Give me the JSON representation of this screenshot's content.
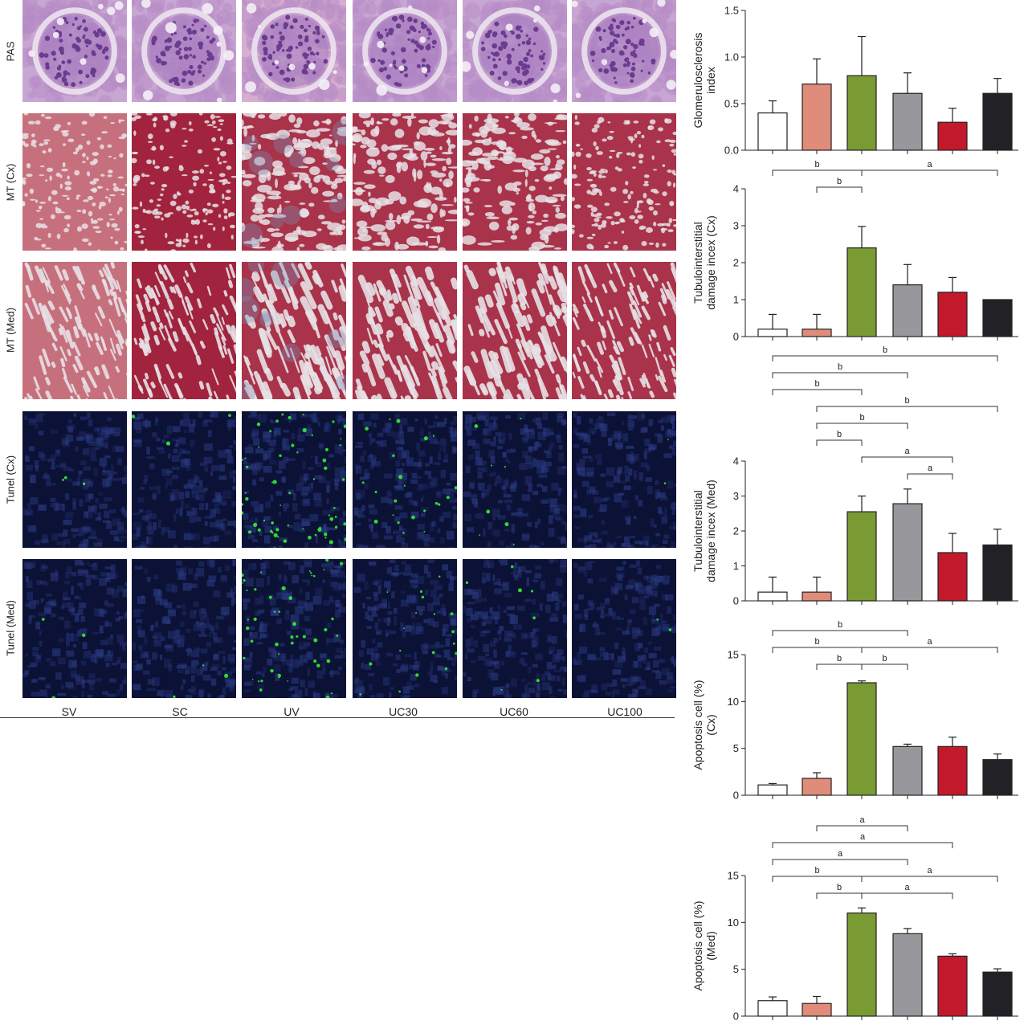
{
  "groups": [
    "SV",
    "SC",
    "UV",
    "UC30",
    "UC60",
    "UC100"
  ],
  "rows": [
    {
      "label": "PAS",
      "kind": "pas"
    },
    {
      "label": "MT (Cx)",
      "kind": "mtcx"
    },
    {
      "label": "MT (Med)",
      "kind": "mtmed"
    },
    {
      "label": "Tunel (Cx)",
      "kind": "tunel"
    },
    {
      "label": "Tunel (Med)",
      "kind": "tunel"
    }
  ],
  "colors": {
    "bars": [
      "#ffffff",
      "#e08c7a",
      "#7a9a34",
      "#97979c",
      "#c21a2c",
      "#222226"
    ],
    "bar_edge": "#222222",
    "pas_bg": "#c8a6d3",
    "pas_nuclei": "#6a3b8e",
    "mt_red": "#a8334a",
    "mt_lumen": "#e6e0e4",
    "tunel_bg": "#0c1236",
    "tunel_green": "#33ee33"
  },
  "chart_data": [
    {
      "type": "bar",
      "categories": [
        "SV",
        "SC",
        "UV",
        "UC30",
        "UC60",
        "UC100"
      ],
      "values": [
        0.4,
        0.71,
        0.8,
        0.61,
        0.3,
        0.61
      ],
      "errors": [
        0.13,
        0.27,
        0.42,
        0.22,
        0.15,
        0.16
      ],
      "ylabel": [
        "Glomerulosclerosis",
        "index"
      ],
      "ylim": [
        0,
        1.5
      ],
      "yticks": [
        0.0,
        0.5,
        1.0,
        1.5
      ],
      "ytick_labels": [
        "0.0",
        "0.5",
        "1.0",
        "1.5"
      ],
      "brackets": []
    },
    {
      "type": "bar",
      "categories": [
        "SV",
        "SC",
        "UV",
        "UC30",
        "UC60",
        "UC100"
      ],
      "values": [
        0.2,
        0.2,
        2.4,
        1.4,
        1.2,
        1.0
      ],
      "errors": [
        0.4,
        0.4,
        0.58,
        0.55,
        0.4,
        0
      ],
      "ylabel": [
        "Tubulointerstitial",
        "damage incex (Cx)"
      ],
      "ylim": [
        0,
        4
      ],
      "yticks": [
        0,
        1,
        2,
        3,
        4
      ],
      "ytick_labels": [
        "0",
        "1",
        "2",
        "3",
        "4"
      ],
      "brackets": [
        {
          "from": 1,
          "to": 2,
          "label": "b",
          "level": 0
        },
        {
          "from": 0,
          "to": 2,
          "label": "b",
          "level": 1
        },
        {
          "from": 2,
          "to": 5,
          "label": "a",
          "level": 1
        }
      ]
    },
    {
      "type": "bar",
      "categories": [
        "SV",
        "SC",
        "UV",
        "UC30",
        "UC60",
        "UC100"
      ],
      "values": [
        0.25,
        0.25,
        2.55,
        2.78,
        1.38,
        1.6
      ],
      "errors": [
        0.43,
        0.43,
        0.45,
        0.42,
        0.55,
        0.45
      ],
      "ylabel": [
        "Tubulointerstitial",
        "damage incex (Med)"
      ],
      "ylim": [
        0,
        4
      ],
      "yticks": [
        0,
        1,
        2,
        3,
        4
      ],
      "ytick_labels": [
        "0",
        "1",
        "2",
        "3",
        "4"
      ],
      "brackets": [
        {
          "from": 3,
          "to": 4,
          "label": "a",
          "level": 0
        },
        {
          "from": 2,
          "to": 4,
          "label": "a",
          "level": 1
        },
        {
          "from": 1,
          "to": 2,
          "label": "b",
          "level": 2
        },
        {
          "from": 1,
          "to": 3,
          "label": "b",
          "level": 3
        },
        {
          "from": 1,
          "to": 5,
          "label": "b",
          "level": 4
        },
        {
          "from": 0,
          "to": 2,
          "label": "b",
          "level": 5
        },
        {
          "from": 0,
          "to": 3,
          "label": "b",
          "level": 6
        },
        {
          "from": 0,
          "to": 5,
          "label": "b",
          "level": 7
        }
      ]
    },
    {
      "type": "bar",
      "categories": [
        "SV",
        "SC",
        "UV",
        "UC30",
        "UC60",
        "UC100"
      ],
      "values": [
        1.1,
        1.8,
        12.0,
        5.2,
        5.2,
        3.8
      ],
      "errors": [
        0.15,
        0.6,
        0.2,
        0.25,
        1.0,
        0.6
      ],
      "ylabel": [
        "Apoptosis cell (%)",
        "(Cx)"
      ],
      "ylim": [
        0,
        15
      ],
      "yticks": [
        0,
        5,
        10,
        15
      ],
      "ytick_labels": [
        "0",
        "5",
        "10",
        "15"
      ],
      "brackets": [
        {
          "from": 1,
          "to": 2,
          "label": "b",
          "level": 0
        },
        {
          "from": 2,
          "to": 3,
          "label": "b",
          "level": 0
        },
        {
          "from": 0,
          "to": 2,
          "label": "b",
          "level": 1
        },
        {
          "from": 2,
          "to": 5,
          "label": "a",
          "level": 1
        },
        {
          "from": 0,
          "to": 3,
          "label": "b",
          "level": 2
        }
      ]
    },
    {
      "type": "bar",
      "categories": [
        "SV",
        "SC",
        "UV",
        "UC30",
        "UC60",
        "UC100"
      ],
      "values": [
        1.65,
        1.35,
        11.0,
        8.8,
        6.4,
        4.7
      ],
      "errors": [
        0.4,
        0.75,
        0.55,
        0.55,
        0.25,
        0.35
      ],
      "ylabel": [
        "Apoptosis cell (%)",
        "(Med)"
      ],
      "ylim": [
        0,
        15
      ],
      "yticks": [
        0,
        5,
        10,
        15
      ],
      "ytick_labels": [
        "0",
        "5",
        "10",
        "15"
      ],
      "brackets": [
        {
          "from": 1,
          "to": 2,
          "label": "b",
          "level": 0
        },
        {
          "from": 2,
          "to": 4,
          "label": "a",
          "level": 0
        },
        {
          "from": 0,
          "to": 2,
          "label": "b",
          "level": 1
        },
        {
          "from": 2,
          "to": 5,
          "label": "a",
          "level": 1
        },
        {
          "from": 0,
          "to": 3,
          "label": "a",
          "level": 2
        },
        {
          "from": 0,
          "to": 4,
          "label": "a",
          "level": 3
        },
        {
          "from": 1,
          "to": 3,
          "label": "a",
          "level": 4
        }
      ]
    }
  ]
}
